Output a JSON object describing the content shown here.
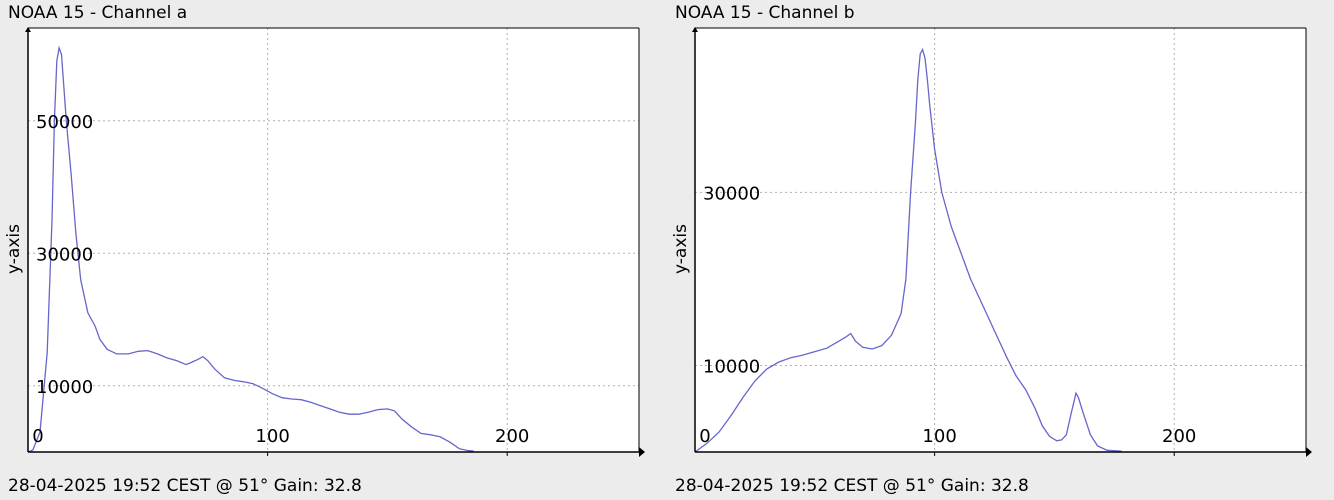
{
  "chart_data": [
    {
      "type": "line",
      "title": "NOAA 15 - Channel a",
      "xlabel": "",
      "ylabel": "y-axis",
      "footer": "28-04-2025 19:52 CEST @ 51° Gain: 32.8",
      "xlim": [
        0,
        255
      ],
      "ylim": [
        0,
        64000
      ],
      "x_ticks": [
        0,
        100,
        200
      ],
      "y_ticks": [
        10000,
        30000,
        50000
      ],
      "grid": true,
      "series": [
        {
          "color": "#6666cc",
          "points": [
            [
              0,
              0
            ],
            [
              2,
              300
            ],
            [
              5,
              3000
            ],
            [
              8,
              15000
            ],
            [
              10,
              35000
            ],
            [
              11,
              50000
            ],
            [
              12,
              59000
            ],
            [
              13,
              61000
            ],
            [
              14,
              60000
            ],
            [
              15,
              55000
            ],
            [
              16,
              50000
            ],
            [
              18,
              42000
            ],
            [
              20,
              33000
            ],
            [
              22,
              26000
            ],
            [
              25,
              21000
            ],
            [
              28,
              19000
            ],
            [
              30,
              17000
            ],
            [
              33,
              15500
            ],
            [
              37,
              14800
            ],
            [
              42,
              14800
            ],
            [
              46,
              15200
            ],
            [
              50,
              15300
            ],
            [
              54,
              14800
            ],
            [
              58,
              14200
            ],
            [
              62,
              13800
            ],
            [
              66,
              13200
            ],
            [
              68,
              13500
            ],
            [
              71,
              14000
            ],
            [
              73,
              14400
            ],
            [
              75,
              13800
            ],
            [
              78,
              12500
            ],
            [
              82,
              11200
            ],
            [
              86,
              10800
            ],
            [
              90,
              10600
            ],
            [
              94,
              10300
            ],
            [
              98,
              9600
            ],
            [
              102,
              8800
            ],
            [
              106,
              8200
            ],
            [
              110,
              8000
            ],
            [
              114,
              7900
            ],
            [
              118,
              7500
            ],
            [
              122,
              7000
            ],
            [
              126,
              6500
            ],
            [
              130,
              6000
            ],
            [
              134,
              5700
            ],
            [
              138,
              5700
            ],
            [
              142,
              6000
            ],
            [
              146,
              6400
            ],
            [
              150,
              6500
            ],
            [
              153,
              6200
            ],
            [
              156,
              5000
            ],
            [
              160,
              3800
            ],
            [
              164,
              2800
            ],
            [
              168,
              2600
            ],
            [
              172,
              2300
            ],
            [
              176,
              1500
            ],
            [
              180,
              500
            ],
            [
              184,
              200
            ],
            [
              186,
              150
            ]
          ]
        }
      ]
    },
    {
      "type": "line",
      "title": "NOAA 15 - Channel b",
      "xlabel": "",
      "ylabel": "y-axis",
      "footer": "28-04-2025 19:52 CEST @ 51° Gain: 32.8",
      "xlim": [
        0,
        255
      ],
      "ylim": [
        0,
        49000
      ],
      "x_ticks": [
        0,
        100,
        200
      ],
      "y_ticks": [
        10000,
        30000
      ],
      "grid": true,
      "series": [
        {
          "color": "#6666cc",
          "points": [
            [
              0,
              0
            ],
            [
              5,
              1000
            ],
            [
              10,
              2300
            ],
            [
              15,
              4200
            ],
            [
              20,
              6300
            ],
            [
              25,
              8200
            ],
            [
              30,
              9600
            ],
            [
              35,
              10400
            ],
            [
              40,
              10900
            ],
            [
              45,
              11200
            ],
            [
              50,
              11600
            ],
            [
              55,
              12000
            ],
            [
              60,
              12800
            ],
            [
              63,
              13300
            ],
            [
              65,
              13700
            ],
            [
              67,
              12800
            ],
            [
              70,
              12100
            ],
            [
              74,
              11900
            ],
            [
              78,
              12300
            ],
            [
              82,
              13500
            ],
            [
              86,
              16000
            ],
            [
              88,
              20000
            ],
            [
              90,
              30000
            ],
            [
              92,
              38000
            ],
            [
              93,
              43000
            ],
            [
              94,
              46000
            ],
            [
              95,
              46500
            ],
            [
              96,
              45500
            ],
            [
              97,
              43000
            ],
            [
              98,
              40000
            ],
            [
              100,
              35000
            ],
            [
              103,
              30000
            ],
            [
              107,
              26000
            ],
            [
              111,
              23000
            ],
            [
              115,
              20000
            ],
            [
              120,
              17000
            ],
            [
              125,
              14000
            ],
            [
              130,
              11000
            ],
            [
              134,
              8800
            ],
            [
              138,
              7200
            ],
            [
              142,
              5000
            ],
            [
              145,
              3000
            ],
            [
              148,
              1800
            ],
            [
              151,
              1300
            ],
            [
              153,
              1400
            ],
            [
              155,
              2000
            ],
            [
              157,
              4500
            ],
            [
              159,
              6800
            ],
            [
              160,
              6300
            ],
            [
              162,
              4500
            ],
            [
              165,
              2000
            ],
            [
              168,
              700
            ],
            [
              172,
              200
            ],
            [
              178,
              100
            ]
          ]
        }
      ]
    }
  ]
}
